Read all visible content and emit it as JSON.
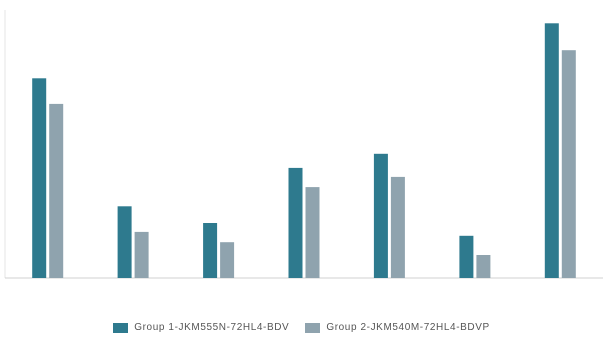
{
  "chart_data": {
    "type": "bar",
    "title": "",
    "xlabel": "",
    "ylabel": "",
    "categories": [
      "",
      "",
      "",
      "",
      "",
      "",
      ""
    ],
    "ylim": [
      0,
      100
    ],
    "grid": false,
    "legend_position": "bottom",
    "series": [
      {
        "name": "Group 1-JKM555N-72HL4-BDV",
        "color": "#2e7a8e",
        "values": [
          78,
          28,
          21.5,
          43,
          48.5,
          16.5,
          99.5
        ]
      },
      {
        "name": "Group 2-JKM540M-72HL4-BDVP",
        "color": "#8fa3ae",
        "values": [
          68,
          18,
          14,
          35.5,
          39.5,
          9,
          89
        ]
      }
    ]
  }
}
